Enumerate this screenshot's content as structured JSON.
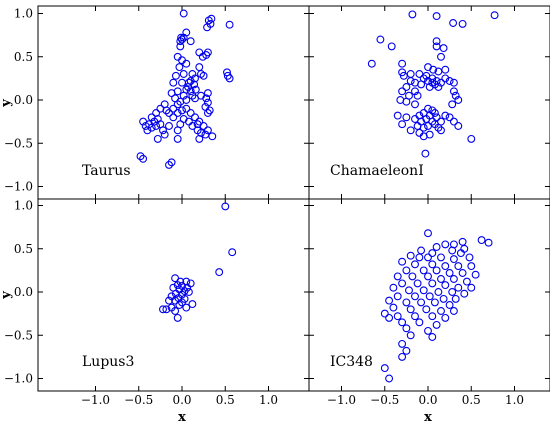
{
  "chart_data": {
    "type": "scatter",
    "layout": "2x2 grid, shared axes",
    "xlim": [
      -1.5,
      1.4
    ],
    "ylim": [
      -1.1,
      1.05
    ],
    "xticks": [
      -1.0,
      -0.5,
      0.0,
      0.5,
      1.0
    ],
    "yticks": [
      -1.0,
      -0.5,
      0.0,
      0.5,
      1.0
    ],
    "xlabel": "x",
    "ylabel": "y",
    "marker": "open circle",
    "marker_color": "#0000ee",
    "grid": false,
    "panels": [
      {
        "name": "Taurus",
        "label_position": "bottom-left",
        "points": [
          [
            0.02,
            1.0
          ],
          [
            0.31,
            0.92
          ],
          [
            0.34,
            0.94
          ],
          [
            0.33,
            0.88
          ],
          [
            0.29,
            0.84
          ],
          [
            0.55,
            0.87
          ],
          [
            0.05,
            0.78
          ],
          [
            -0.01,
            0.72
          ],
          [
            0.0,
            0.7
          ],
          [
            -0.02,
            0.68
          ],
          [
            0.02,
            0.72
          ],
          [
            0.1,
            0.68
          ],
          [
            -0.02,
            0.62
          ],
          [
            0.2,
            0.55
          ],
          [
            0.28,
            0.52
          ],
          [
            0.3,
            0.55
          ],
          [
            0.24,
            0.5
          ],
          [
            -0.05,
            0.5
          ],
          [
            0.0,
            0.46
          ],
          [
            0.05,
            0.42
          ],
          [
            -0.03,
            0.38
          ],
          [
            0.02,
            0.3
          ],
          [
            -0.07,
            0.28
          ],
          [
            0.12,
            0.3
          ],
          [
            0.15,
            0.25
          ],
          [
            0.1,
            0.22
          ],
          [
            0.08,
            0.2
          ],
          [
            0.14,
            0.18
          ],
          [
            0.07,
            0.15
          ],
          [
            0.16,
            0.12
          ],
          [
            0.2,
            0.38
          ],
          [
            0.22,
            0.3
          ],
          [
            0.25,
            0.28
          ],
          [
            0.52,
            0.32
          ],
          [
            0.53,
            0.28
          ],
          [
            0.55,
            0.25
          ],
          [
            -0.1,
            0.2
          ],
          [
            0.0,
            0.2
          ],
          [
            0.05,
            0.12
          ],
          [
            -0.05,
            0.1
          ],
          [
            0.1,
            0.1
          ],
          [
            -0.12,
            0.08
          ],
          [
            0.12,
            0.05
          ],
          [
            0.02,
            0.05
          ],
          [
            -0.08,
            0.02
          ],
          [
            0.15,
            0.02
          ],
          [
            0.05,
            0.0
          ],
          [
            -0.02,
            -0.02
          ],
          [
            0.22,
            0.05
          ],
          [
            0.3,
            0.08
          ],
          [
            0.28,
            0.02
          ],
          [
            0.3,
            -0.03
          ],
          [
            0.27,
            -0.08
          ],
          [
            0.32,
            -0.12
          ],
          [
            0.3,
            -0.15
          ],
          [
            -0.05,
            -0.05
          ],
          [
            -0.1,
            -0.1
          ],
          [
            -0.15,
            -0.15
          ],
          [
            -0.2,
            -0.05
          ],
          [
            -0.25,
            -0.1
          ],
          [
            -0.18,
            -0.12
          ],
          [
            -0.3,
            -0.15
          ],
          [
            -0.35,
            -0.2
          ],
          [
            -0.32,
            -0.25
          ],
          [
            -0.28,
            -0.22
          ],
          [
            -0.38,
            -0.28
          ],
          [
            -0.42,
            -0.3
          ],
          [
            -0.4,
            -0.35
          ],
          [
            -0.35,
            -0.32
          ],
          [
            -0.3,
            -0.3
          ],
          [
            -0.25,
            -0.28
          ],
          [
            -0.22,
            -0.35
          ],
          [
            -0.45,
            -0.25
          ],
          [
            -0.1,
            -0.2
          ],
          [
            -0.05,
            -0.15
          ],
          [
            0.0,
            -0.12
          ],
          [
            0.05,
            -0.1
          ],
          [
            0.1,
            -0.15
          ],
          [
            0.15,
            -0.2
          ],
          [
            0.08,
            -0.25
          ],
          [
            0.02,
            -0.22
          ],
          [
            -0.02,
            -0.28
          ],
          [
            0.12,
            -0.3
          ],
          [
            0.18,
            -0.28
          ],
          [
            0.2,
            -0.25
          ],
          [
            0.25,
            -0.3
          ],
          [
            0.3,
            -0.35
          ],
          [
            0.22,
            -0.38
          ],
          [
            0.18,
            -0.35
          ],
          [
            0.27,
            -0.4
          ],
          [
            0.35,
            -0.42
          ],
          [
            0.2,
            -0.45
          ],
          [
            -0.05,
            -0.35
          ],
          [
            -0.15,
            -0.3
          ],
          [
            -0.2,
            -0.4
          ],
          [
            -0.28,
            -0.45
          ],
          [
            -0.05,
            -0.45
          ],
          [
            -0.48,
            -0.65
          ],
          [
            -0.45,
            -0.68
          ],
          [
            -0.12,
            -0.72
          ],
          [
            -0.15,
            -0.75
          ]
        ]
      },
      {
        "name": "ChamaeleonI",
        "label_position": "bottom-left",
        "points": [
          [
            -0.18,
            0.99
          ],
          [
            0.1,
            0.97
          ],
          [
            0.77,
            0.98
          ],
          [
            0.29,
            0.89
          ],
          [
            0.4,
            0.88
          ],
          [
            -0.55,
            0.7
          ],
          [
            -0.42,
            0.62
          ],
          [
            0.1,
            0.62
          ],
          [
            0.1,
            0.68
          ],
          [
            0.18,
            0.6
          ],
          [
            0.15,
            0.5
          ],
          [
            -0.65,
            0.42
          ],
          [
            -0.3,
            0.42
          ],
          [
            0.0,
            0.38
          ],
          [
            0.06,
            0.35
          ],
          [
            0.12,
            0.33
          ],
          [
            0.2,
            0.35
          ],
          [
            -0.3,
            0.32
          ],
          [
            -0.28,
            0.28
          ],
          [
            -0.2,
            0.3
          ],
          [
            -0.1,
            0.3
          ],
          [
            -0.05,
            0.25
          ],
          [
            0.0,
            0.22
          ],
          [
            0.05,
            0.25
          ],
          [
            0.1,
            0.22
          ],
          [
            0.15,
            0.2
          ],
          [
            0.2,
            0.25
          ],
          [
            0.25,
            0.22
          ],
          [
            0.3,
            0.2
          ],
          [
            -0.15,
            0.2
          ],
          [
            -0.2,
            0.22
          ],
          [
            -0.08,
            0.18
          ],
          [
            0.02,
            0.15
          ],
          [
            0.08,
            0.18
          ],
          [
            0.12,
            0.15
          ],
          [
            0.05,
            0.2
          ],
          [
            -0.02,
            0.28
          ],
          [
            -0.25,
            0.15
          ],
          [
            -0.3,
            0.1
          ],
          [
            -0.22,
            0.05
          ],
          [
            -0.15,
            0.1
          ],
          [
            -0.12,
            0.05
          ],
          [
            0.3,
            0.1
          ],
          [
            0.32,
            0.05
          ],
          [
            0.35,
            0.0
          ],
          [
            0.28,
            -0.05
          ],
          [
            -0.32,
            0.0
          ],
          [
            -0.25,
            -0.02
          ],
          [
            -0.15,
            -0.05
          ],
          [
            0.0,
            -0.1
          ],
          [
            0.05,
            -0.12
          ],
          [
            -0.05,
            -0.15
          ],
          [
            0.08,
            -0.15
          ],
          [
            -0.1,
            -0.18
          ],
          [
            0.1,
            -0.2
          ],
          [
            -0.02,
            -0.22
          ],
          [
            0.02,
            -0.18
          ],
          [
            -0.08,
            -0.25
          ],
          [
            0.05,
            -0.25
          ],
          [
            -0.12,
            -0.3
          ],
          [
            0.0,
            -0.3
          ],
          [
            0.08,
            -0.28
          ],
          [
            -0.05,
            -0.32
          ],
          [
            0.12,
            -0.32
          ],
          [
            -0.15,
            -0.22
          ],
          [
            0.15,
            -0.25
          ],
          [
            0.2,
            -0.18
          ],
          [
            0.25,
            -0.2
          ],
          [
            0.3,
            -0.25
          ],
          [
            0.35,
            -0.3
          ],
          [
            -0.25,
            -0.2
          ],
          [
            -0.3,
            -0.28
          ],
          [
            -0.35,
            -0.18
          ],
          [
            -0.2,
            -0.35
          ],
          [
            -0.1,
            -0.38
          ],
          [
            0.02,
            -0.4
          ],
          [
            -0.05,
            -0.42
          ],
          [
            0.15,
            -0.35
          ],
          [
            0.5,
            -0.45
          ],
          [
            -0.03,
            -0.62
          ]
        ]
      },
      {
        "name": "Lupus3",
        "label_position": "bottom-left",
        "points": [
          [
            0.5,
            0.99
          ],
          [
            0.58,
            0.46
          ],
          [
            0.43,
            0.23
          ],
          [
            -0.08,
            0.16
          ],
          [
            -0.02,
            0.12
          ],
          [
            0.05,
            0.12
          ],
          [
            0.1,
            0.1
          ],
          [
            -0.05,
            0.08
          ],
          [
            0.0,
            0.07
          ],
          [
            0.06,
            0.05
          ],
          [
            -0.1,
            0.05
          ],
          [
            -0.03,
            0.03
          ],
          [
            0.03,
            0.01
          ],
          [
            0.08,
            0.0
          ],
          [
            -0.07,
            -0.02
          ],
          [
            0.0,
            -0.03
          ],
          [
            -0.12,
            -0.05
          ],
          [
            -0.04,
            -0.07
          ],
          [
            0.03,
            -0.08
          ],
          [
            -0.08,
            -0.1
          ],
          [
            0.0,
            -0.12
          ],
          [
            -0.15,
            -0.1
          ],
          [
            -0.03,
            -0.15
          ],
          [
            0.05,
            -0.18
          ],
          [
            -0.12,
            -0.18
          ],
          [
            -0.18,
            -0.2
          ],
          [
            -0.08,
            -0.22
          ],
          [
            -0.22,
            -0.2
          ],
          [
            0.12,
            -0.14
          ],
          [
            -0.05,
            -0.3
          ]
        ]
      },
      {
        "name": "IC348",
        "label_position": "bottom-left",
        "points": [
          [
            0.0,
            0.68
          ],
          [
            0.62,
            0.6
          ],
          [
            0.7,
            0.57
          ],
          [
            0.4,
            0.58
          ],
          [
            0.3,
            0.55
          ],
          [
            0.42,
            0.5
          ],
          [
            0.2,
            0.55
          ],
          [
            0.1,
            0.52
          ],
          [
            0.28,
            0.48
          ],
          [
            -0.08,
            0.48
          ],
          [
            0.05,
            0.45
          ],
          [
            0.38,
            0.45
          ],
          [
            -0.2,
            0.42
          ],
          [
            -0.1,
            0.4
          ],
          [
            0.0,
            0.4
          ],
          [
            0.15,
            0.4
          ],
          [
            0.3,
            0.38
          ],
          [
            0.48,
            0.4
          ],
          [
            -0.3,
            0.35
          ],
          [
            -0.15,
            0.32
          ],
          [
            0.05,
            0.32
          ],
          [
            0.2,
            0.3
          ],
          [
            0.35,
            0.3
          ],
          [
            0.5,
            0.3
          ],
          [
            -0.25,
            0.25
          ],
          [
            -0.05,
            0.25
          ],
          [
            0.1,
            0.25
          ],
          [
            0.25,
            0.22
          ],
          [
            0.4,
            0.22
          ],
          [
            0.55,
            0.2
          ],
          [
            -0.35,
            0.18
          ],
          [
            -0.18,
            0.18
          ],
          [
            0.0,
            0.18
          ],
          [
            0.15,
            0.15
          ],
          [
            0.3,
            0.15
          ],
          [
            0.45,
            0.12
          ],
          [
            -0.3,
            0.1
          ],
          [
            -0.12,
            0.1
          ],
          [
            0.05,
            0.1
          ],
          [
            0.2,
            0.08
          ],
          [
            0.35,
            0.05
          ],
          [
            0.5,
            0.05
          ],
          [
            -0.4,
            0.05
          ],
          [
            -0.22,
            0.02
          ],
          [
            -0.05,
            0.02
          ],
          [
            0.12,
            0.0
          ],
          [
            0.28,
            0.0
          ],
          [
            0.42,
            -0.02
          ],
          [
            -0.35,
            -0.05
          ],
          [
            -0.15,
            -0.05
          ],
          [
            0.02,
            -0.05
          ],
          [
            0.18,
            -0.08
          ],
          [
            0.32,
            -0.08
          ],
          [
            -0.45,
            -0.1
          ],
          [
            -0.25,
            -0.12
          ],
          [
            -0.08,
            -0.12
          ],
          [
            0.08,
            -0.12
          ],
          [
            0.25,
            -0.15
          ],
          [
            -0.4,
            -0.18
          ],
          [
            -0.2,
            -0.2
          ],
          [
            -0.02,
            -0.2
          ],
          [
            0.15,
            -0.22
          ],
          [
            0.3,
            -0.22
          ],
          [
            -0.35,
            -0.28
          ],
          [
            -0.15,
            -0.28
          ],
          [
            0.05,
            -0.28
          ],
          [
            0.2,
            -0.3
          ],
          [
            -0.3,
            -0.35
          ],
          [
            -0.1,
            -0.35
          ],
          [
            0.1,
            -0.38
          ],
          [
            -0.25,
            -0.42
          ],
          [
            0.0,
            -0.45
          ],
          [
            -0.45,
            -0.3
          ],
          [
            -0.5,
            -0.25
          ],
          [
            -0.2,
            -0.5
          ],
          [
            0.05,
            -0.52
          ],
          [
            -0.3,
            -0.6
          ],
          [
            -0.25,
            -0.68
          ],
          [
            -0.3,
            -0.75
          ],
          [
            -0.5,
            -0.88
          ],
          [
            -0.45,
            -1.0
          ]
        ]
      }
    ]
  }
}
